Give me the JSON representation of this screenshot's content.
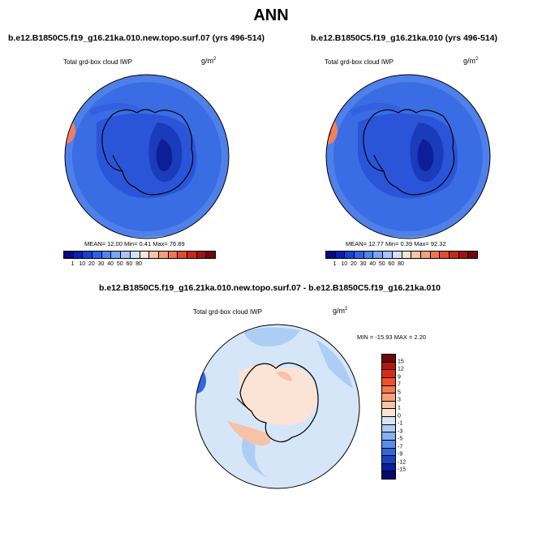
{
  "title": "ANN",
  "panels": [
    {
      "heading": "b.e12.B1850C5.f19_g16.21ka.010.new.topo.surf.07 (yrs 496-514)",
      "variable": "Total grd-box cloud IWP",
      "units_base": "g/m",
      "units_exp": "2",
      "stats": "MEAN=  12.00  Min=   0.41  Max=  76.89"
    },
    {
      "heading": "b.e12.B1850C5.f19_g16.21ka.010 (yrs 496-514)",
      "variable": "Total grd-box cloud IWP",
      "units_base": "g/m",
      "units_exp": "2",
      "stats": "MEAN=  12.77  Min=   0.39  Max=  92.32"
    },
    {
      "heading": "b.e12.B1850C5.f19_g16.21ka.010.new.topo.surf.07 - b.e12.B1850C5.f19_g16.21ka.010",
      "variable": "Total grd-box cloud IWP",
      "units_base": "g/m",
      "units_exp": "2",
      "stats": "MIN = -15.93 MAX =   2.20"
    }
  ],
  "colorbar_top": {
    "labels": [
      "1",
      "10",
      "20",
      "30",
      "40",
      "50",
      "60",
      "80"
    ],
    "colors": [
      "#08088a",
      "#0a1fb3",
      "#1740d8",
      "#2e62ea",
      "#4f85f0",
      "#7aa6f5",
      "#a6c6f8",
      "#d0e2fa",
      "#fbe4d6",
      "#f8c4a8",
      "#f49f7e",
      "#ee7656",
      "#e34a33",
      "#c8281c",
      "#a01410",
      "#6e0a08"
    ]
  },
  "colorbar_diff": {
    "labels": [
      "15",
      "12",
      "9",
      "7",
      "5",
      "3",
      "1",
      "0",
      "-1",
      "-3",
      "-5",
      "-7",
      "-9",
      "-12",
      "-15"
    ],
    "colors": [
      "#6e0a08",
      "#b0180f",
      "#dc2a18",
      "#f04f2a",
      "#f3784e",
      "#f5a07c",
      "#f7c2a6",
      "#fbe4d6",
      "#d5e6f8",
      "#aecdf5",
      "#86b0f0",
      "#5b8ee8",
      "#3367de",
      "#1b42c6",
      "#0a1f9c",
      "#060870"
    ]
  }
}
